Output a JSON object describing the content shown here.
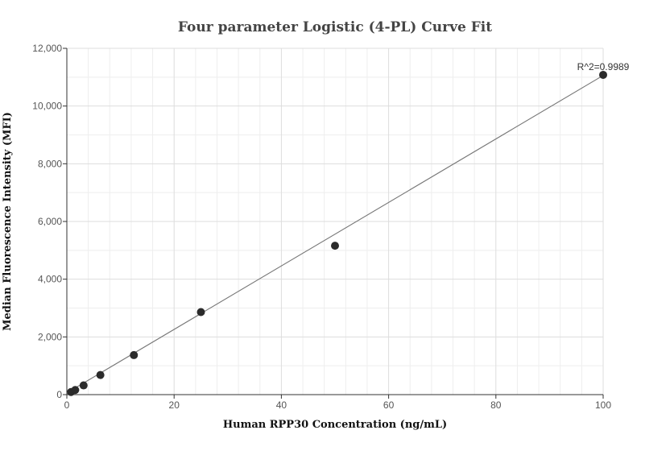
{
  "chart_data": {
    "type": "scatter",
    "title": "Four parameter Logistic (4-PL) Curve Fit",
    "xlabel": "Human RPP30 Concentration (ng/mL)",
    "ylabel": "Median Fluorescence Intensity (MFI)",
    "xlim": [
      0,
      100
    ],
    "ylim": [
      0,
      12000
    ],
    "xticks": [
      0,
      20,
      40,
      60,
      80,
      100
    ],
    "yticks": [
      0,
      2000,
      4000,
      6000,
      8000,
      10000,
      12000
    ],
    "xtick_labels": [
      "0",
      "20",
      "40",
      "60",
      "80",
      "100"
    ],
    "ytick_labels": [
      "0",
      "2,000",
      "4,000",
      "6,000",
      "8,000",
      "10,000",
      "12,000"
    ],
    "grid": true,
    "series": [
      {
        "x": [
          0.78,
          1.56,
          3.125,
          6.25,
          12.5,
          25,
          50,
          100
        ],
        "y": [
          90,
          160,
          320,
          680,
          1370,
          2860,
          5160,
          11080
        ]
      }
    ],
    "fit_line": {
      "x": [
        0,
        100
      ],
      "y": [
        60,
        11060
      ]
    },
    "annotation": "R^2=0.9989"
  }
}
